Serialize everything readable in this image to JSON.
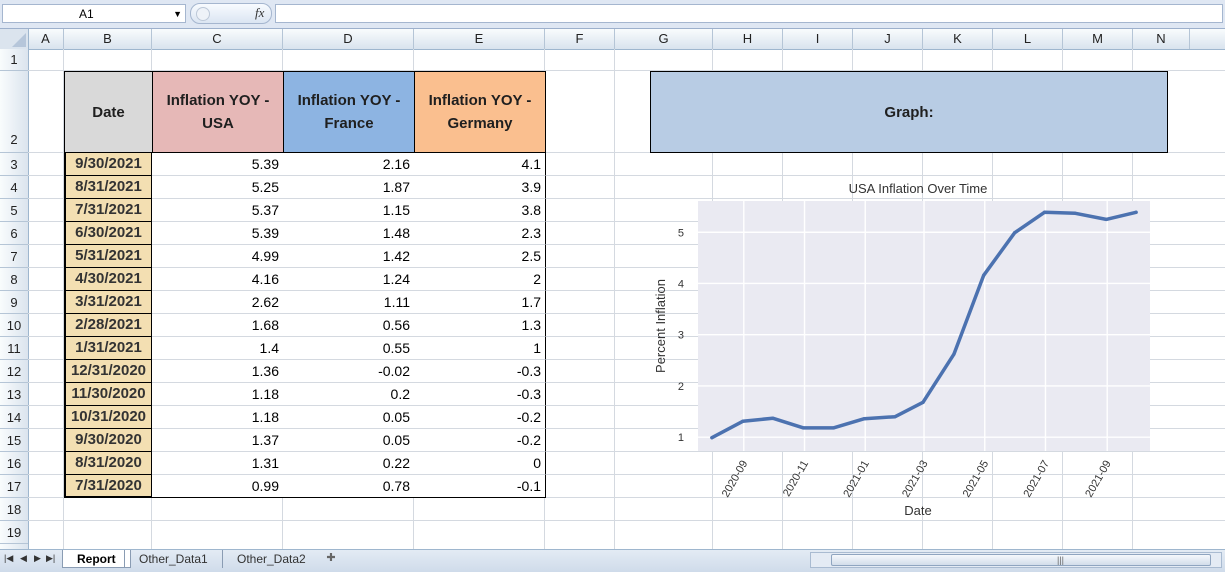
{
  "formula_bar": {
    "name_box": "A1",
    "fx_label": "fx",
    "formula": ""
  },
  "columns": [
    "A",
    "B",
    "C",
    "D",
    "E",
    "F",
    "G",
    "H",
    "I",
    "J",
    "K",
    "L",
    "M",
    "N"
  ],
  "rows": [
    "1",
    "2",
    "3",
    "4",
    "5",
    "6",
    "7",
    "8",
    "9",
    "10",
    "11",
    "12",
    "13",
    "14",
    "15",
    "16",
    "17",
    "18",
    "19"
  ],
  "table": {
    "headers": [
      "Date",
      "Inflation YOY - USA",
      "Inflation YOY - France",
      "Inflation YOY - Germany"
    ],
    "header_colors": [
      "#d9d9d9",
      "#e6b8b7",
      "#8db4e2",
      "#fabf8f"
    ],
    "date_fill": "#f3dfb2",
    "rows": [
      [
        "9/30/2021",
        "5.39",
        "2.16",
        "4.1"
      ],
      [
        "8/31/2021",
        "5.25",
        "1.87",
        "3.9"
      ],
      [
        "7/31/2021",
        "5.37",
        "1.15",
        "3.8"
      ],
      [
        "6/30/2021",
        "5.39",
        "1.48",
        "2.3"
      ],
      [
        "5/31/2021",
        "4.99",
        "1.42",
        "2.5"
      ],
      [
        "4/30/2021",
        "4.16",
        "1.24",
        "2"
      ],
      [
        "3/31/2021",
        "2.62",
        "1.11",
        "1.7"
      ],
      [
        "2/28/2021",
        "1.68",
        "0.56",
        "1.3"
      ],
      [
        "1/31/2021",
        "1.4",
        "0.55",
        "1"
      ],
      [
        "12/31/2020",
        "1.36",
        "-0.02",
        "-0.3"
      ],
      [
        "11/30/2020",
        "1.18",
        "0.2",
        "-0.3"
      ],
      [
        "10/31/2020",
        "1.18",
        "0.05",
        "-0.2"
      ],
      [
        "9/30/2020",
        "1.37",
        "0.05",
        "-0.2"
      ],
      [
        "8/31/2020",
        "1.31",
        "0.22",
        "0"
      ],
      [
        "7/31/2020",
        "0.99",
        "0.78",
        "-0.1"
      ]
    ]
  },
  "graph_label": "Graph:",
  "graph_label_color": "#b8cce4",
  "chart_data": {
    "type": "line",
    "title": "USA Inflation Over Time",
    "xlabel": "Date",
    "ylabel": "Percent Inflation",
    "x": [
      "2020-07-31",
      "2020-08-31",
      "2020-09-30",
      "2020-10-31",
      "2020-11-30",
      "2020-12-31",
      "2021-01-31",
      "2021-02-28",
      "2021-03-31",
      "2021-04-30",
      "2021-05-31",
      "2021-06-30",
      "2021-07-31",
      "2021-08-31",
      "2021-09-30"
    ],
    "values": [
      0.99,
      1.31,
      1.37,
      1.18,
      1.18,
      1.36,
      1.4,
      1.68,
      2.62,
      4.16,
      4.99,
      5.39,
      5.37,
      5.25,
      5.39
    ],
    "x_tick_labels": [
      "2020-09",
      "2020-11",
      "2021-01",
      "2021-03",
      "2021-05",
      "2021-07",
      "2021-09"
    ],
    "y_ticks": [
      1,
      2,
      3,
      4,
      5
    ],
    "grid": true,
    "line_color": "#4c72b0",
    "background": "#eaeaf2"
  },
  "sheet_tabs": [
    {
      "label": "Report",
      "active": true
    },
    {
      "label": "Other_Data1",
      "active": false
    },
    {
      "label": "Other_Data2",
      "active": false
    }
  ]
}
